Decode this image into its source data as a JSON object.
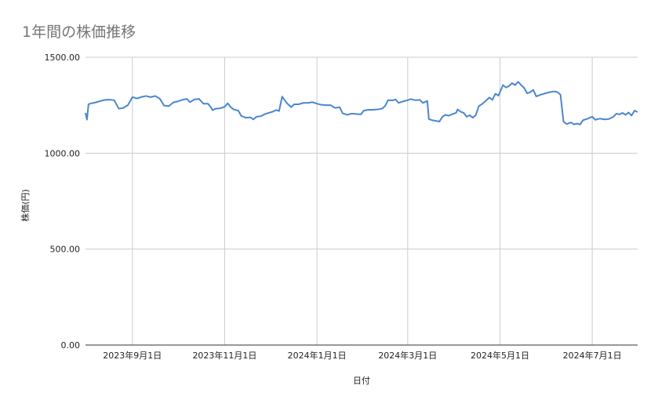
{
  "chart_data": {
    "type": "line",
    "title": "1年間の株価推移",
    "xlabel": "日付",
    "ylabel": "株価(円)",
    "ylim": [
      0,
      1500
    ],
    "yticks": [
      "0.00",
      "500.00",
      "1000.00",
      "1500.00"
    ],
    "y_tick_values": [
      0,
      500,
      1000,
      1500
    ],
    "grid": true,
    "legend": "none",
    "colors": {
      "series": "#4a86d0",
      "grid": "#cccccc",
      "axis": "#333333"
    },
    "x_range": [
      "2023-08-01",
      "2024-07-31"
    ],
    "xticks": [
      {
        "date": "2023-09-01",
        "label": "2023年9月1日"
      },
      {
        "date": "2023-11-01",
        "label": "2023年11月1日"
      },
      {
        "date": "2024-01-01",
        "label": "2024年1月1日"
      },
      {
        "date": "2024-03-01",
        "label": "2024年3月1日"
      },
      {
        "date": "2024-05-01",
        "label": "2024年5月1日"
      },
      {
        "date": "2024-07-01",
        "label": "2024年7月1日"
      }
    ],
    "series": [
      {
        "points": [
          [
            "2023-08-01",
            1210
          ],
          [
            "2023-08-02",
            1175
          ],
          [
            "2023-08-03",
            1255
          ],
          [
            "2023-08-05",
            1260
          ],
          [
            "2023-08-08",
            1265
          ],
          [
            "2023-08-11",
            1272
          ],
          [
            "2023-08-14",
            1278
          ],
          [
            "2023-08-17",
            1279
          ],
          [
            "2023-08-20",
            1276
          ],
          [
            "2023-08-23",
            1232
          ],
          [
            "2023-08-26",
            1236
          ],
          [
            "2023-08-29",
            1250
          ],
          [
            "2023-09-01",
            1292
          ],
          [
            "2023-09-04",
            1285
          ],
          [
            "2023-09-07",
            1293
          ],
          [
            "2023-09-10",
            1298
          ],
          [
            "2023-09-13",
            1292
          ],
          [
            "2023-09-16",
            1298
          ],
          [
            "2023-09-19",
            1285
          ],
          [
            "2023-09-22",
            1248
          ],
          [
            "2023-09-25",
            1245
          ],
          [
            "2023-09-28",
            1264
          ],
          [
            "2023-10-01",
            1270
          ],
          [
            "2023-10-04",
            1278
          ],
          [
            "2023-10-07",
            1283
          ],
          [
            "2023-10-09",
            1266
          ],
          [
            "2023-10-12",
            1280
          ],
          [
            "2023-10-15",
            1283
          ],
          [
            "2023-10-18",
            1258
          ],
          [
            "2023-10-21",
            1258
          ],
          [
            "2023-10-23",
            1238
          ],
          [
            "2023-10-24",
            1224
          ],
          [
            "2023-10-26",
            1232
          ],
          [
            "2023-10-29",
            1234
          ],
          [
            "2023-11-01",
            1242
          ],
          [
            "2023-11-03",
            1260
          ],
          [
            "2023-11-05",
            1240
          ],
          [
            "2023-11-07",
            1228
          ],
          [
            "2023-11-10",
            1222
          ],
          [
            "2023-11-12",
            1194
          ],
          [
            "2023-11-15",
            1185
          ],
          [
            "2023-11-18",
            1187
          ],
          [
            "2023-11-20",
            1176
          ],
          [
            "2023-11-22",
            1190
          ],
          [
            "2023-11-25",
            1193
          ],
          [
            "2023-11-28",
            1205
          ],
          [
            "2023-12-01",
            1212
          ],
          [
            "2023-12-03",
            1217
          ],
          [
            "2023-12-05",
            1225
          ],
          [
            "2023-12-07",
            1220
          ],
          [
            "2023-12-09",
            1295
          ],
          [
            "2023-12-12",
            1262
          ],
          [
            "2023-12-15",
            1240
          ],
          [
            "2023-12-17",
            1255
          ],
          [
            "2023-12-20",
            1255
          ],
          [
            "2023-12-23",
            1262
          ],
          [
            "2023-12-26",
            1262
          ],
          [
            "2023-12-29",
            1266
          ],
          [
            "2024-01-01",
            1258
          ],
          [
            "2024-01-04",
            1252
          ],
          [
            "2024-01-07",
            1250
          ],
          [
            "2024-01-10",
            1250
          ],
          [
            "2024-01-13",
            1236
          ],
          [
            "2024-01-16",
            1240
          ],
          [
            "2024-01-18",
            1208
          ],
          [
            "2024-01-21",
            1200
          ],
          [
            "2024-01-24",
            1206
          ],
          [
            "2024-01-27",
            1204
          ],
          [
            "2024-01-30",
            1202
          ],
          [
            "2024-02-01",
            1222
          ],
          [
            "2024-02-04",
            1226
          ],
          [
            "2024-02-07",
            1226
          ],
          [
            "2024-02-10",
            1228
          ],
          [
            "2024-02-13",
            1232
          ],
          [
            "2024-02-15",
            1245
          ],
          [
            "2024-02-17",
            1276
          ],
          [
            "2024-02-20",
            1275
          ],
          [
            "2024-02-22",
            1280
          ],
          [
            "2024-02-24",
            1262
          ],
          [
            "2024-02-27",
            1270
          ],
          [
            "2024-03-01",
            1276
          ],
          [
            "2024-03-03",
            1282
          ],
          [
            "2024-03-06",
            1276
          ],
          [
            "2024-03-09",
            1278
          ],
          [
            "2024-03-11",
            1262
          ],
          [
            "2024-03-14",
            1272
          ],
          [
            "2024-03-15",
            1178
          ],
          [
            "2024-03-17",
            1172
          ],
          [
            "2024-03-20",
            1168
          ],
          [
            "2024-03-22",
            1165
          ],
          [
            "2024-03-24",
            1190
          ],
          [
            "2024-03-26",
            1200
          ],
          [
            "2024-03-28",
            1195
          ],
          [
            "2024-03-31",
            1205
          ],
          [
            "2024-04-02",
            1210
          ],
          [
            "2024-04-03",
            1228
          ],
          [
            "2024-04-05",
            1216
          ],
          [
            "2024-04-07",
            1210
          ],
          [
            "2024-04-09",
            1190
          ],
          [
            "2024-04-11",
            1198
          ],
          [
            "2024-04-13",
            1185
          ],
          [
            "2024-04-15",
            1198
          ],
          [
            "2024-04-17",
            1245
          ],
          [
            "2024-04-19",
            1255
          ],
          [
            "2024-04-21",
            1268
          ],
          [
            "2024-04-24",
            1290
          ],
          [
            "2024-04-26",
            1278
          ],
          [
            "2024-04-28",
            1310
          ],
          [
            "2024-04-30",
            1300
          ],
          [
            "2024-05-03",
            1355
          ],
          [
            "2024-05-05",
            1342
          ],
          [
            "2024-05-07",
            1350
          ],
          [
            "2024-05-09",
            1365
          ],
          [
            "2024-05-11",
            1355
          ],
          [
            "2024-05-13",
            1372
          ],
          [
            "2024-05-15",
            1355
          ],
          [
            "2024-05-17",
            1340
          ],
          [
            "2024-05-19",
            1312
          ],
          [
            "2024-05-21",
            1318
          ],
          [
            "2024-05-23",
            1330
          ],
          [
            "2024-05-25",
            1296
          ],
          [
            "2024-05-28",
            1305
          ],
          [
            "2024-05-31",
            1312
          ],
          [
            "2024-06-03",
            1318
          ],
          [
            "2024-06-06",
            1322
          ],
          [
            "2024-06-08",
            1318
          ],
          [
            "2024-06-10",
            1305
          ],
          [
            "2024-06-12",
            1165
          ],
          [
            "2024-06-14",
            1152
          ],
          [
            "2024-06-17",
            1160
          ],
          [
            "2024-06-19",
            1150
          ],
          [
            "2024-06-21",
            1154
          ],
          [
            "2024-06-23",
            1150
          ],
          [
            "2024-06-25",
            1172
          ],
          [
            "2024-06-28",
            1180
          ],
          [
            "2024-07-01",
            1190
          ],
          [
            "2024-07-03",
            1174
          ],
          [
            "2024-07-06",
            1180
          ],
          [
            "2024-07-09",
            1176
          ],
          [
            "2024-07-12",
            1178
          ],
          [
            "2024-07-15",
            1190
          ],
          [
            "2024-07-17",
            1206
          ],
          [
            "2024-07-19",
            1202
          ],
          [
            "2024-07-21",
            1210
          ],
          [
            "2024-07-23",
            1200
          ],
          [
            "2024-07-25",
            1212
          ],
          [
            "2024-07-27",
            1196
          ],
          [
            "2024-07-29",
            1222
          ],
          [
            "2024-07-31",
            1214
          ]
        ]
      }
    ]
  }
}
